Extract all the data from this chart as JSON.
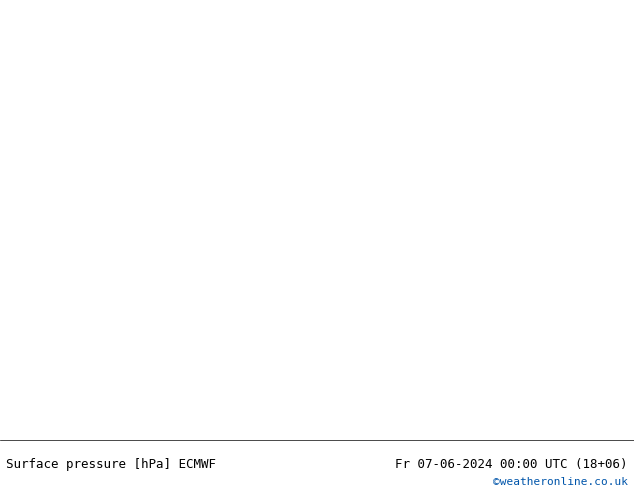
{
  "title_left": "Surface pressure [hPa] ECMWF",
  "title_right": "Fr 07-06-2024 00:00 UTC (18+06)",
  "credit": "©weatheronline.co.uk",
  "ocean_color": "#b8c8d8",
  "land_color": "#c8e0b0",
  "border_color": "#888888",
  "footer_bg": "#ffffff",
  "credit_color": "#0055aa",
  "contour_low_color": "#0000cc",
  "contour_high_color": "#cc0000",
  "contour_1013_color": "#000000",
  "figsize": [
    6.34,
    4.9
  ],
  "dpi": 100,
  "lon_min": -45,
  "lon_max": 55,
  "lat_min": 27,
  "lat_max": 73
}
